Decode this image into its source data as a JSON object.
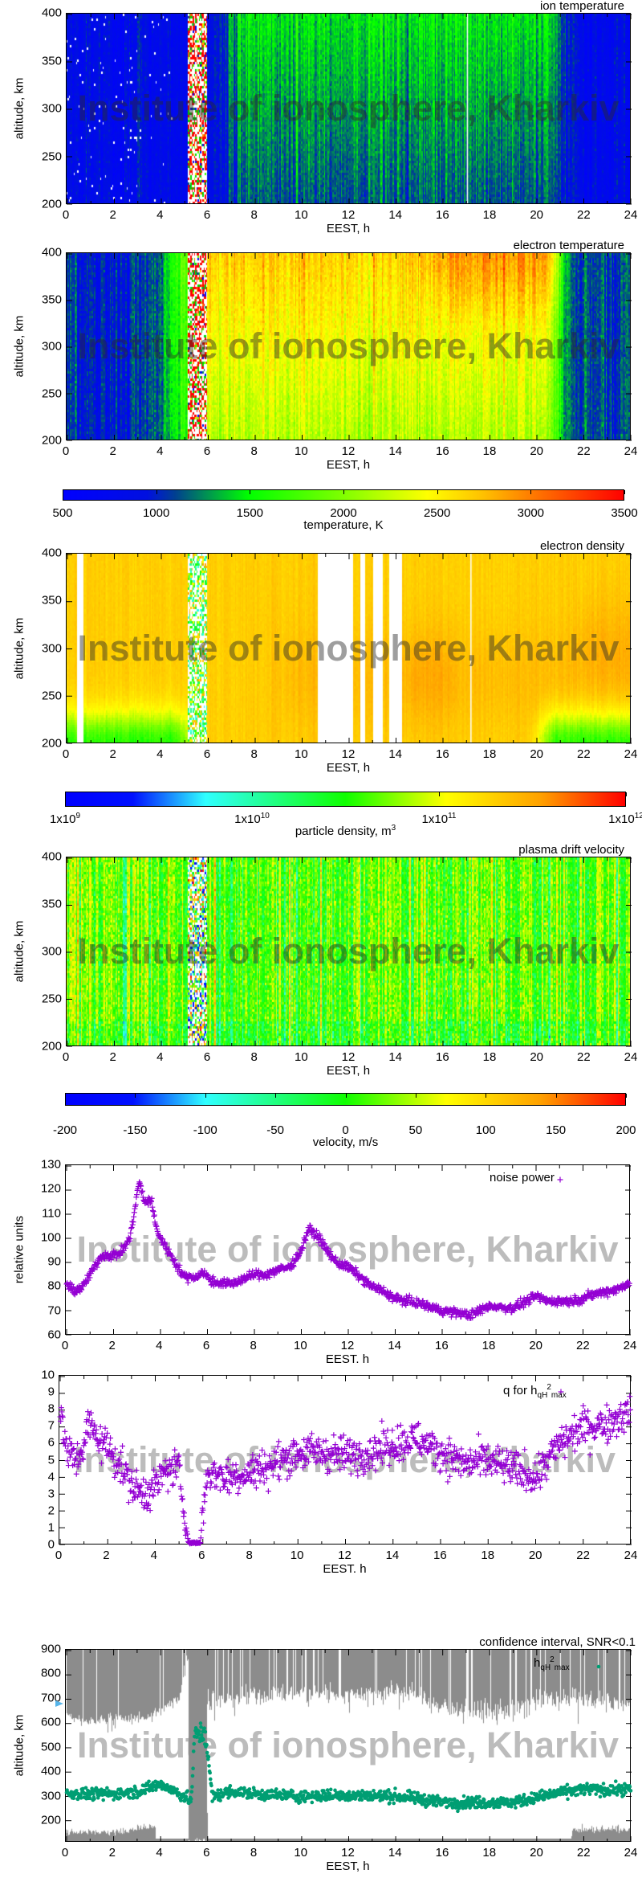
{
  "watermark": "Institute of ionosphere, Kharkiv",
  "colors": {
    "scatter_purple": "#9400d3",
    "scatter_green": "#009e73",
    "ci_gray": "#8c8c8c",
    "arrow_blue": "#56b4e9"
  },
  "colormaps": {
    "temperature": [
      [
        0,
        "#0000ff"
      ],
      [
        0.15,
        "#0010e0"
      ],
      [
        0.2,
        "#004090"
      ],
      [
        0.33,
        "#00ff00"
      ],
      [
        0.5,
        "#80ff00"
      ],
      [
        0.65,
        "#ffff00"
      ],
      [
        0.75,
        "#ffc000"
      ],
      [
        0.85,
        "#ff7000"
      ],
      [
        1,
        "#ff0000"
      ]
    ],
    "density": [
      [
        0,
        "#0000ff"
      ],
      [
        0.12,
        "#0010ff"
      ],
      [
        0.25,
        "#30ffff"
      ],
      [
        0.5,
        "#10ff00"
      ],
      [
        0.68,
        "#ffff00"
      ],
      [
        0.85,
        "#ffa000"
      ],
      [
        1,
        "#ff0000"
      ]
    ],
    "velocity": [
      [
        0,
        "#0000ff"
      ],
      [
        0.12,
        "#0010ff"
      ],
      [
        0.25,
        "#30ffff"
      ],
      [
        0.5,
        "#10ff00"
      ],
      [
        0.68,
        "#ffff00"
      ],
      [
        0.85,
        "#ffa000"
      ],
      [
        1,
        "#ff0000"
      ]
    ]
  },
  "chart_data": [
    {
      "id": "ion",
      "type": "heatmap",
      "title": "ion temperature",
      "xlabel": "EEST, h",
      "ylabel": "altitude, km",
      "xlim": [
        0,
        24
      ],
      "ylim": [
        200,
        400
      ],
      "xticks": [
        "0",
        "2",
        "4",
        "6",
        "8",
        "10",
        "12",
        "14",
        "16",
        "18",
        "20",
        "22",
        "24"
      ],
      "yticks": [
        "200",
        "250",
        "300",
        "350",
        "400"
      ],
      "zlim": [
        500,
        3500
      ],
      "colormap": "temperature",
      "night_value_K": 850,
      "day_value_K": 1400,
      "gaps_h": [
        [
          5.2,
          6.0
        ]
      ],
      "blank_lines_h": [
        17.05
      ]
    },
    {
      "id": "electron",
      "type": "heatmap",
      "title": "electron temperature",
      "xlabel": "EEST, h",
      "ylabel": "altitude, km",
      "xlim": [
        0,
        24
      ],
      "ylim": [
        200,
        400
      ],
      "xticks": [
        "0",
        "2",
        "4",
        "6",
        "8",
        "10",
        "12",
        "14",
        "16",
        "18",
        "20",
        "22",
        "24"
      ],
      "yticks": [
        "200",
        "250",
        "300",
        "350",
        "400"
      ],
      "zlim": [
        500,
        3500
      ],
      "colormap": "temperature",
      "night_value_K": 1000,
      "day_value_K": 2300,
      "gaps_h": [
        [
          5.2,
          6.0
        ]
      ]
    },
    {
      "id": "temp_colorbar",
      "type": "colorbar",
      "label": "temperature, K",
      "ticks": [
        "500",
        "1000",
        "1500",
        "2000",
        "2500",
        "3000",
        "3500"
      ],
      "range": [
        500,
        3500
      ],
      "colormap": "temperature"
    },
    {
      "id": "density",
      "type": "heatmap",
      "title": "electron density",
      "xlabel": "EEST, h",
      "ylabel": "altitude, km",
      "xlim": [
        0,
        24
      ],
      "ylim": [
        200,
        400
      ],
      "xticks": [
        "0",
        "2",
        "4",
        "6",
        "8",
        "10",
        "12",
        "14",
        "16",
        "18",
        "20",
        "22",
        "24"
      ],
      "yticks": [
        "200",
        "250",
        "300",
        "350",
        "400"
      ],
      "zlim": [
        1000000000.0,
        1000000000000.0
      ],
      "zscale": "log",
      "colormap": "density",
      "typical_value_m3": 200000000000.0,
      "gaps_h": [
        [
          0.45,
          0.72
        ],
        [
          10.7,
          12.2
        ],
        [
          12.5,
          12.7
        ],
        [
          13.1,
          13.5
        ],
        [
          13.75,
          14.3
        ]
      ],
      "noisy_h": [
        [
          5.2,
          6.0
        ]
      ],
      "blank_lines_h": [
        17.2
      ]
    },
    {
      "id": "density_colorbar",
      "type": "colorbar",
      "label": "particle density, m",
      "label_sup": "3",
      "ticks": [
        {
          "base": "1x10",
          "exp": "9"
        },
        {
          "base": "1x10",
          "exp": "10"
        },
        {
          "base": "1x10",
          "exp": "11"
        },
        {
          "base": "1x10",
          "exp": "12"
        }
      ],
      "range": [
        1000000000.0,
        1000000000000.0
      ],
      "scale": "log",
      "colormap": "density"
    },
    {
      "id": "velocity",
      "type": "heatmap",
      "title": "plasma drift velocity",
      "xlabel": "EEST, h",
      "ylabel": "altitude, km",
      "xlim": [
        0,
        24
      ],
      "ylim": [
        200,
        400
      ],
      "xticks": [
        "0",
        "2",
        "4",
        "6",
        "8",
        "10",
        "12",
        "14",
        "16",
        "18",
        "20",
        "22",
        "24"
      ],
      "yticks": [
        "200",
        "250",
        "300",
        "350",
        "400"
      ],
      "zlim": [
        -200,
        200
      ],
      "colormap": "velocity",
      "typical_value_ms": 20,
      "noisy_h": [
        [
          5.2,
          6.0
        ]
      ]
    },
    {
      "id": "velocity_colorbar",
      "type": "colorbar",
      "label": "velocity, m/s",
      "ticks": [
        "-200",
        "-150",
        "-100",
        "-50",
        "0",
        "50",
        "100",
        "150",
        "200"
      ],
      "range": [
        -200,
        200
      ],
      "colormap": "velocity"
    },
    {
      "id": "noise",
      "type": "scatter",
      "xlabel": "EEST. h",
      "ylabel": "relative units",
      "xlim": [
        0,
        24
      ],
      "ylim": [
        60,
        130
      ],
      "xticks": [
        "0",
        "2",
        "4",
        "6",
        "8",
        "10",
        "12",
        "14",
        "16",
        "18",
        "20",
        "22",
        "24"
      ],
      "yticks": [
        "60",
        "70",
        "80",
        "90",
        "100",
        "110",
        "120",
        "130"
      ],
      "legend": "top-right",
      "series": [
        {
          "name": "noise power",
          "marker": "+",
          "color": "#9400d3",
          "x": [
            0,
            0.3,
            0.7,
            1,
            1.5,
            2,
            2.3,
            2.7,
            3.1,
            3.3,
            3.6,
            3.8,
            4,
            4.5,
            5,
            5.5,
            5.8,
            6.2,
            7,
            7.5,
            8,
            8.5,
            9,
            9.5,
            10,
            10.3,
            10.8,
            11,
            11.5,
            12,
            12.5,
            13,
            13.5,
            14,
            15,
            16,
            16.8,
            17.2,
            18,
            19,
            20,
            20.5,
            21,
            21.5,
            22,
            22.5,
            23,
            23.5,
            24
          ],
          "y": [
            81,
            78,
            80,
            85,
            93,
            93,
            94,
            100,
            124,
            115,
            116,
            105,
            100,
            92,
            84,
            84,
            86,
            82,
            81,
            83,
            85,
            85,
            87,
            88,
            95,
            104,
            100,
            96,
            90,
            88,
            84,
            80,
            78,
            75,
            73,
            70,
            69,
            68,
            72,
            71,
            76,
            74,
            74,
            74,
            75,
            77,
            78,
            79,
            82
          ]
        }
      ]
    },
    {
      "id": "q",
      "type": "scatter",
      "xlabel": "EEST. h",
      "xlim": [
        0,
        24
      ],
      "ylim": [
        0,
        10
      ],
      "xticks": [
        "0",
        "2",
        "4",
        "6",
        "8",
        "10",
        "12",
        "14",
        "16",
        "18",
        "20",
        "22",
        "24"
      ],
      "yticks": [
        "0",
        "1",
        "2",
        "3",
        "4",
        "5",
        "6",
        "7",
        "8",
        "9",
        "10"
      ],
      "legend": "top-right",
      "series": [
        {
          "name": "q for h",
          "name_sub": "qH",
          "name_sup": "2",
          "name_sub2": "max",
          "marker": "+",
          "color": "#9400d3",
          "x": [
            0,
            0.3,
            0.7,
            1,
            1.2,
            1.5,
            2,
            2.5,
            3,
            3.5,
            4,
            4.5,
            5,
            5.2,
            5.4,
            5.9,
            6,
            6.2,
            7,
            8,
            9,
            10,
            11,
            12,
            13,
            14,
            15,
            16,
            17,
            18,
            19,
            20,
            20.5,
            21,
            21.5,
            22,
            23,
            24
          ],
          "y": [
            7.8,
            5.5,
            5,
            6,
            7.2,
            6.5,
            5.8,
            4.8,
            3.5,
            3,
            3.5,
            4.5,
            4.5,
            2,
            0.1,
            0.1,
            2,
            4.3,
            4,
            4.3,
            4.8,
            5.5,
            5.5,
            5.3,
            5.5,
            6,
            6.3,
            5.5,
            4.8,
            5,
            4.5,
            4,
            5,
            6,
            6.5,
            7,
            7.2,
            8
          ]
        }
      ]
    },
    {
      "id": "hmax",
      "type": "scatter",
      "title": "confidence interval, SNR<0.1",
      "xlabel": "EEST, h",
      "ylabel": "altitude, km",
      "xlim": [
        0,
        24
      ],
      "ylim": [
        113,
        900
      ],
      "xticks": [
        "0",
        "2",
        "4",
        "6",
        "8",
        "10",
        "12",
        "14",
        "16",
        "18",
        "20",
        "22",
        "24"
      ],
      "yticks": [
        "200",
        "300",
        "400",
        "500",
        "600",
        "700",
        "800",
        "900"
      ],
      "legend": "top-right",
      "series": [
        {
          "name": "h",
          "name_sub": "qH",
          "name_sup": "2",
          "name_sub2": "max",
          "marker": "dot",
          "color": "#009e73",
          "x": [
            0,
            2,
            3,
            4,
            5,
            5.3,
            5.45,
            5.6,
            5.9,
            6.2,
            7,
            8,
            10,
            12,
            14,
            15,
            16,
            17,
            18,
            19,
            20,
            21,
            22,
            23,
            24
          ],
          "y": [
            310,
            310,
            320,
            350,
            300,
            280,
            550,
            560,
            560,
            300,
            320,
            310,
            300,
            305,
            300,
            290,
            275,
            275,
            275,
            275,
            295,
            315,
            330,
            325,
            330
          ]
        }
      ],
      "confidence_upper": {
        "x": [
          0,
          1,
          2,
          3,
          4,
          4.8,
          5.2,
          6.1,
          8,
          10,
          12,
          14,
          15,
          16,
          18,
          19,
          20,
          22,
          24
        ],
        "y": [
          630,
          600,
          620,
          610,
          650,
          700,
          900,
          690,
          710,
          720,
          720,
          730,
          720,
          660,
          640,
          650,
          690,
          700,
          680
        ]
      },
      "confidence_lower": {
        "x": [
          0,
          2.7,
          2.71,
          3.8,
          3.81,
          5.2,
          5.21,
          6.0,
          6.01,
          21.5,
          21.51,
          24
        ],
        "y": [
          150,
          150,
          170,
          170,
          113,
          113,
          900,
          900,
          113,
          113,
          160,
          160
        ]
      }
    }
  ]
}
